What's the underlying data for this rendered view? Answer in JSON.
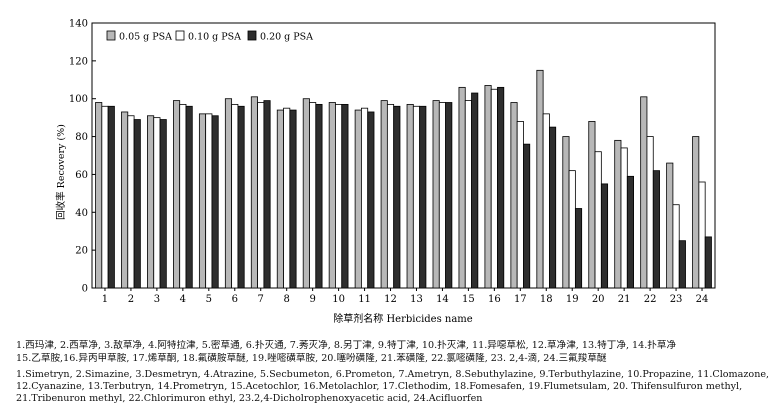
{
  "chart_data": {
    "type": "bar",
    "xlabel": "除草剂名称 Herbicides name",
    "ylabel": "回收率 Recovery (%)",
    "ylim": [
      0,
      140
    ],
    "yticks": [
      0,
      20,
      40,
      60,
      80,
      100,
      120,
      140
    ],
    "grid": false,
    "legend_position": "top-left",
    "categories": [
      "1",
      "2",
      "3",
      "4",
      "5",
      "6",
      "7",
      "8",
      "9",
      "10",
      "11",
      "12",
      "13",
      "14",
      "15",
      "16",
      "17",
      "18",
      "19",
      "20",
      "21",
      "22",
      "23",
      "24"
    ],
    "series": [
      {
        "name": "0.05 g PSA",
        "color": "#b8b8b8",
        "values": [
          98,
          93,
          91,
          99,
          92,
          100,
          101,
          94,
          100,
          98,
          94,
          99,
          97,
          99,
          106,
          107,
          98,
          115,
          80,
          88,
          78,
          101,
          66,
          80
        ]
      },
      {
        "name": "0.10 g PSA",
        "color": "#ffffff",
        "values": [
          96,
          91,
          90,
          97,
          92,
          97,
          98,
          95,
          98,
          97,
          95,
          97,
          96,
          98,
          99,
          105,
          88,
          92,
          62,
          72,
          74,
          80,
          44,
          56
        ]
      },
      {
        "name": "0.20 g PSA",
        "color": "#2e2e2e",
        "values": [
          96,
          89,
          89,
          96,
          91,
          96,
          99,
          94,
          97,
          97,
          93,
          96,
          96,
          98,
          103,
          106,
          76,
          85,
          42,
          55,
          59,
          62,
          25,
          27
        ]
      }
    ]
  },
  "captions": {
    "zh_line1": "1.西玛津, 2.西草净, 3.敌草净, 4.阿特拉津, 5.密草通, 6.扑灭通, 7.莠灭净, 8.另丁津, 9.特丁津, 10.扑灭津, 11.异噁草松, 12.草净津, 13.特丁净, 14.扑草净",
    "zh_line2": "15.乙草胺,16.异丙甲草胺, 17.烯草酮, 18.氟磺胺草醚, 19.唑嘧磺草胺, 20.噻吩磺隆, 21.苯磺隆, 22.氯嘧磺隆, 23. 2,4-滴, 24.三氟羧草醚",
    "en_line1": "1.Simetryn, 2.Simazine, 3.Desmetryn, 4.Atrazine, 5.Secbumeton, 6.Prometon, 7.Ametryn, 8.Sebuthylazine, 9.Terbuthylazine, 10.Propazine, 11.Clomazone,",
    "en_line2": "12.Cyanazine, 13.Terbutryn, 14.Prometryn, 15.Acetochlor, 16.Metolachlor, 17.Clethodim, 18.Fomesafen, 19.Flumetsulam, 20. Thifensulfuron methyl,",
    "en_line3": "21.Tribenuron methyl, 22.Chlorimuron ethyl, 23.2,4-Dicholrophenoxyacetic acid, 24.Acifluorfen"
  }
}
